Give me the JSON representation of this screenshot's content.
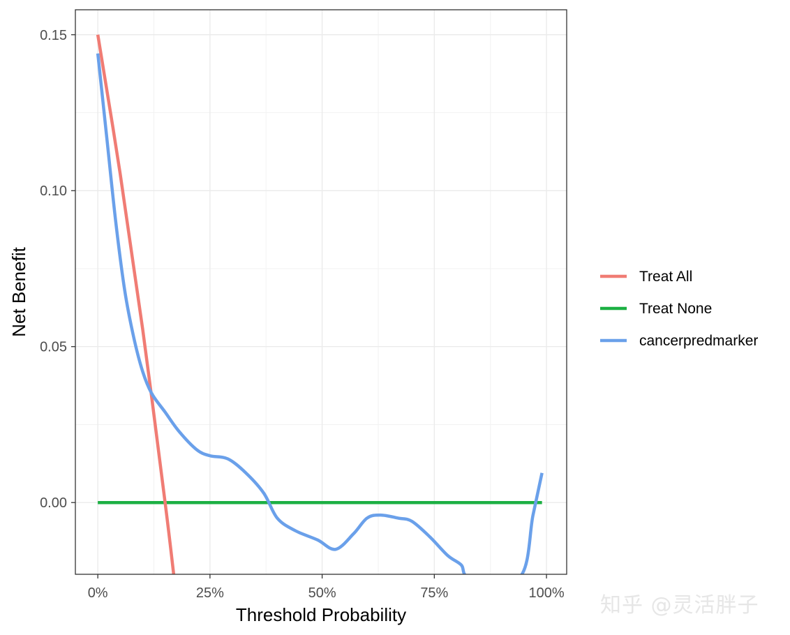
{
  "chart_data": {
    "type": "line",
    "title": "",
    "xlabel": "Threshold Probability",
    "ylabel": "Net Benefit",
    "xlim": [
      -0.05,
      1.045
    ],
    "ylim": [
      -0.023,
      0.158
    ],
    "x_ticks": [
      0,
      0.25,
      0.5,
      0.75,
      1.0
    ],
    "x_tick_labels": [
      "0%",
      "25%",
      "50%",
      "75%",
      "100%"
    ],
    "y_ticks": [
      0.0,
      0.05,
      0.1,
      0.15
    ],
    "y_tick_labels": [
      "0.00",
      "0.05",
      "0.10",
      "0.15"
    ],
    "grid": true,
    "legend_position": "right",
    "series": [
      {
        "name": "Treat All",
        "color": "#f07c74",
        "x": [
          0.0,
          0.05,
          0.1,
          0.15,
          0.17
        ],
        "y": [
          0.15,
          0.1053,
          0.0556,
          0.0,
          -0.0241
        ]
      },
      {
        "name": "Treat None",
        "color": "#1cb043",
        "x": [
          0.0,
          0.99
        ],
        "y": [
          0.0,
          0.0
        ]
      },
      {
        "name": "cancerpredmarker",
        "color": "#6aa0ea",
        "x": [
          0.0,
          0.02,
          0.04,
          0.06,
          0.08,
          0.1,
          0.12,
          0.15,
          0.18,
          0.22,
          0.25,
          0.29,
          0.33,
          0.37,
          0.4,
          0.44,
          0.49,
          0.53,
          0.57,
          0.6,
          0.63,
          0.67,
          0.7,
          0.74,
          0.78,
          0.81,
          0.83,
          0.94,
          0.97,
          0.99
        ],
        "y": [
          0.144,
          0.117,
          0.09,
          0.068,
          0.053,
          0.042,
          0.035,
          0.029,
          0.023,
          0.017,
          0.015,
          0.014,
          0.0095,
          0.003,
          -0.005,
          -0.009,
          -0.012,
          -0.015,
          -0.01,
          -0.005,
          -0.004,
          -0.005,
          -0.006,
          -0.011,
          -0.017,
          -0.02,
          -0.024,
          -0.024,
          -0.004,
          0.0095
        ]
      }
    ]
  },
  "watermark": "知乎 @灵活胖子"
}
